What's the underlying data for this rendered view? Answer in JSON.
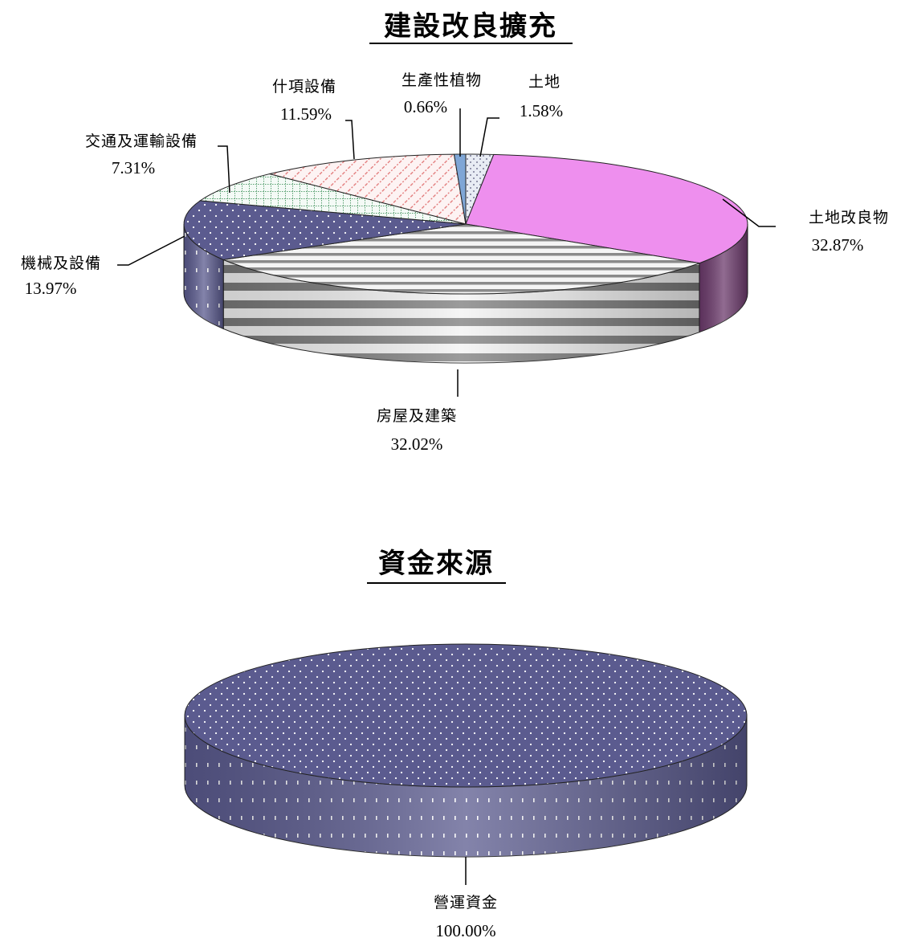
{
  "chart_data": [
    {
      "type": "pie",
      "title": "建設改良擴充",
      "slices": [
        {
          "name": "土地",
          "label": "1.58%",
          "value": 1.58,
          "color": "#e8ecf4",
          "pattern": "dots-dark"
        },
        {
          "name": "土地改良物",
          "label": "32.87%",
          "value": 32.87,
          "color": "#ee8fee",
          "pattern": "solid"
        },
        {
          "name": "房屋及建築",
          "label": "32.02%",
          "value": 32.02,
          "color": "#9a9a9a",
          "pattern": "stripes"
        },
        {
          "name": "機械及設備",
          "label": "13.97%",
          "value": 13.97,
          "color": "#5b5b8f",
          "pattern": "dots-light"
        },
        {
          "name": "交通及運輸設備",
          "label": "7.31%",
          "value": 7.31,
          "color": "#eef6f0",
          "pattern": "grid-green"
        },
        {
          "name": "什項設備",
          "label": "11.59%",
          "value": 11.59,
          "color": "#fbecec",
          "pattern": "dashes-red"
        },
        {
          "name": "生產性植物",
          "label": "0.66%",
          "value": 0.66,
          "color": "#7fa6d6",
          "pattern": "solid"
        }
      ]
    },
    {
      "type": "pie",
      "title": "資金來源",
      "slices": [
        {
          "name": "營運資金",
          "label": "100.00%",
          "value": 100.0,
          "color": "#5b5b8f",
          "pattern": "dots-light"
        }
      ]
    }
  ]
}
